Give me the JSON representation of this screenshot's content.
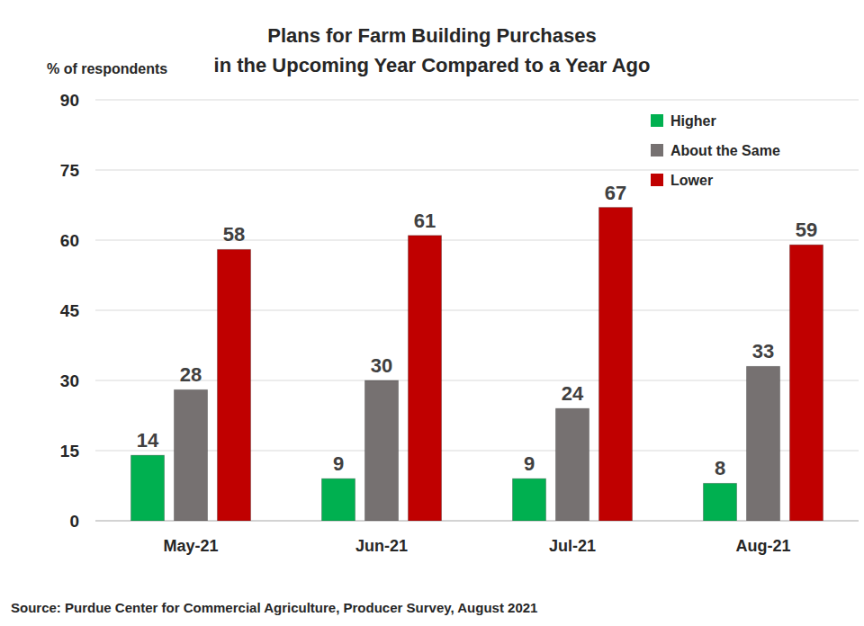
{
  "chart_data": {
    "type": "bar",
    "title": "Plans for Farm Building Purchases\nin the Upcoming Year Compared to a Year Ago",
    "y_label": "% of respondents",
    "source": "Source: Purdue Center for Commercial Agriculture, Producer Survey, August 2021",
    "categories": [
      "May-21",
      "Jun-21",
      "Jul-21",
      "Aug-21"
    ],
    "series": [
      {
        "name": "Higher",
        "color": "#00b050",
        "values": [
          14,
          9,
          9,
          8
        ]
      },
      {
        "name": "About the Same",
        "color": "#767171",
        "values": [
          28,
          30,
          24,
          33
        ]
      },
      {
        "name": "Lower",
        "color": "#c00000",
        "values": [
          58,
          61,
          67,
          59
        ]
      }
    ],
    "ylim": [
      0,
      90
    ],
    "yticks": [
      0,
      15,
      30,
      45,
      60,
      75,
      90
    ],
    "grid": true,
    "legend": "top-right",
    "data_labels": true
  }
}
